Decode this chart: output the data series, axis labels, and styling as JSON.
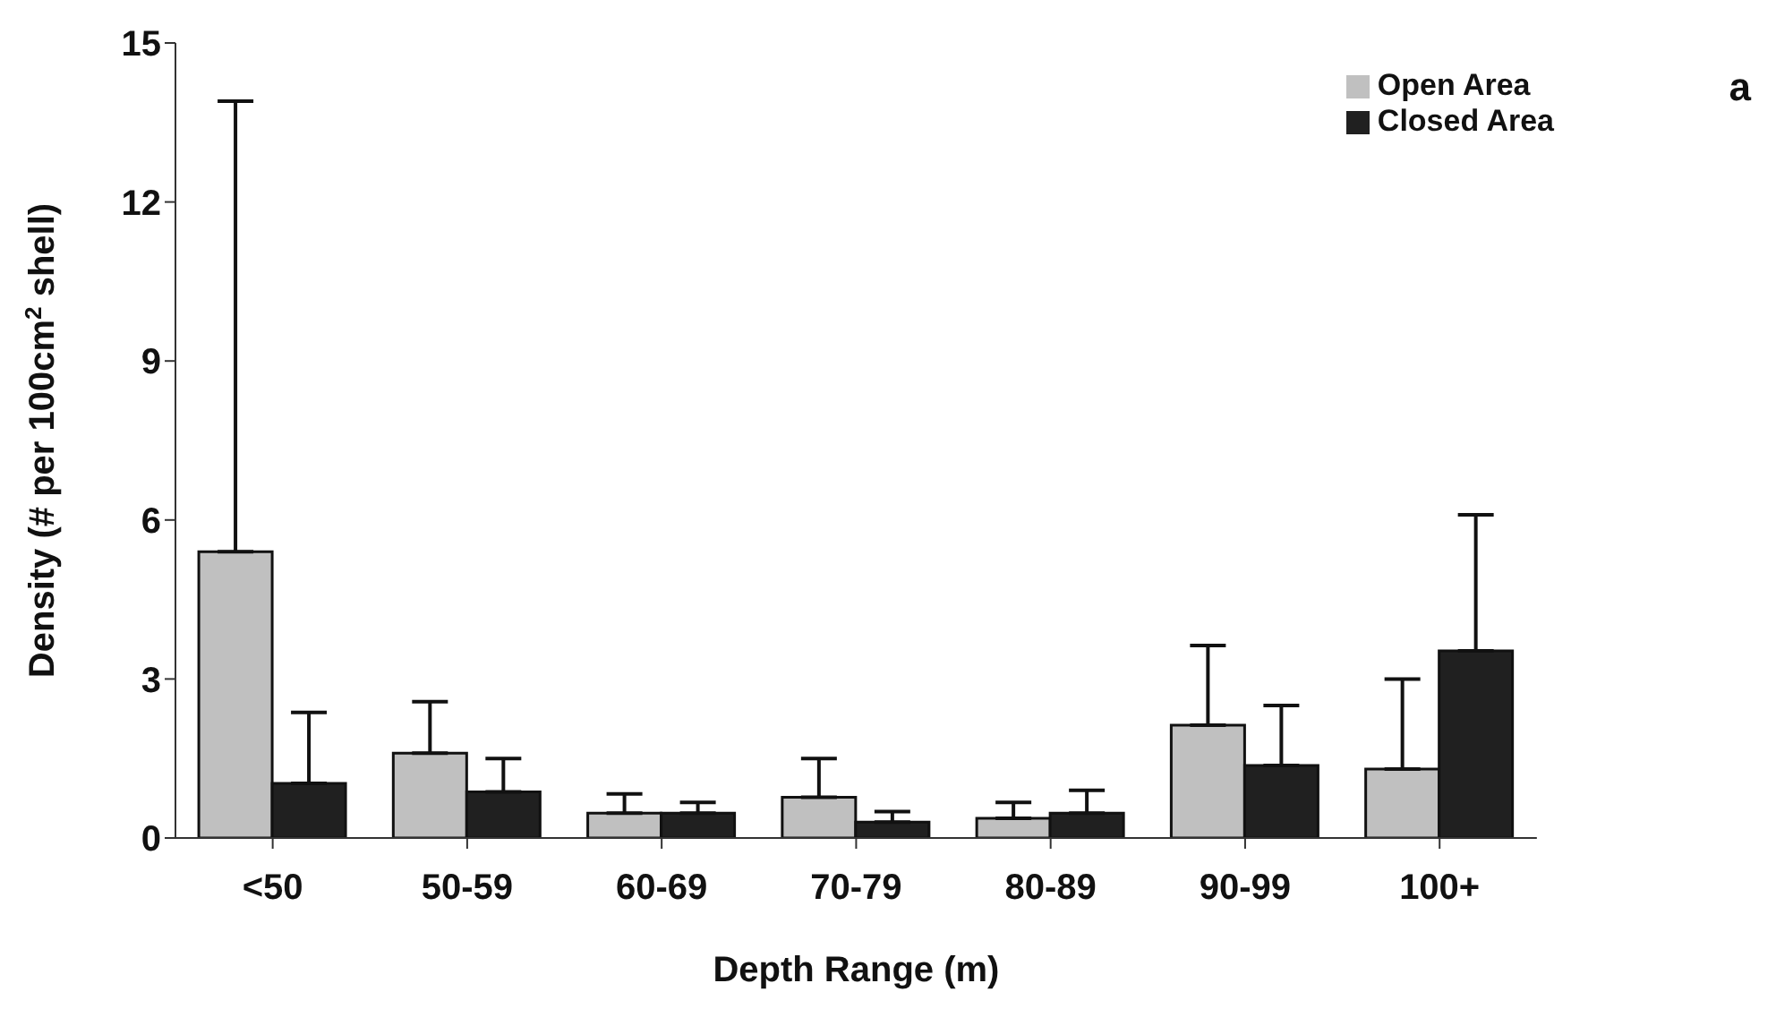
{
  "chart_data": {
    "type": "bar",
    "xlabel": "Depth Range (m)",
    "ylabel": "Density (# per 100cm$^{2}$ shell)",
    "categories": [
      "<50",
      "50-59",
      "60-69",
      "70-79",
      "80-89",
      "90-99",
      "100+"
    ],
    "series": [
      {
        "name": "Open Area",
        "color": "#c0c0c0",
        "values": [
          5.4,
          1.6,
          0.47,
          0.77,
          0.37,
          2.13,
          1.3
        ],
        "errors": [
          [
            5.4,
            13.9
          ],
          [
            1.6,
            2.57
          ],
          [
            0.47,
            0.83
          ],
          [
            0.77,
            1.5
          ],
          [
            0.37,
            0.67
          ],
          [
            2.13,
            3.63
          ],
          [
            1.3,
            3.0
          ]
        ]
      },
      {
        "name": "Closed Area",
        "color": "#202020",
        "values": [
          1.03,
          0.87,
          0.47,
          0.3,
          0.47,
          1.37,
          3.53
        ],
        "errors": [
          [
            1.03,
            2.37
          ],
          [
            0.87,
            1.5
          ],
          [
            0.47,
            0.67
          ],
          [
            0.3,
            0.5
          ],
          [
            0.47,
            0.9
          ],
          [
            1.37,
            2.5
          ],
          [
            3.53,
            6.1
          ]
        ]
      }
    ],
    "ylim": [
      0,
      15
    ],
    "yticks": [
      0,
      3,
      6,
      9,
      12,
      15
    ],
    "legend": "top right",
    "annotations": [
      "a"
    ]
  }
}
